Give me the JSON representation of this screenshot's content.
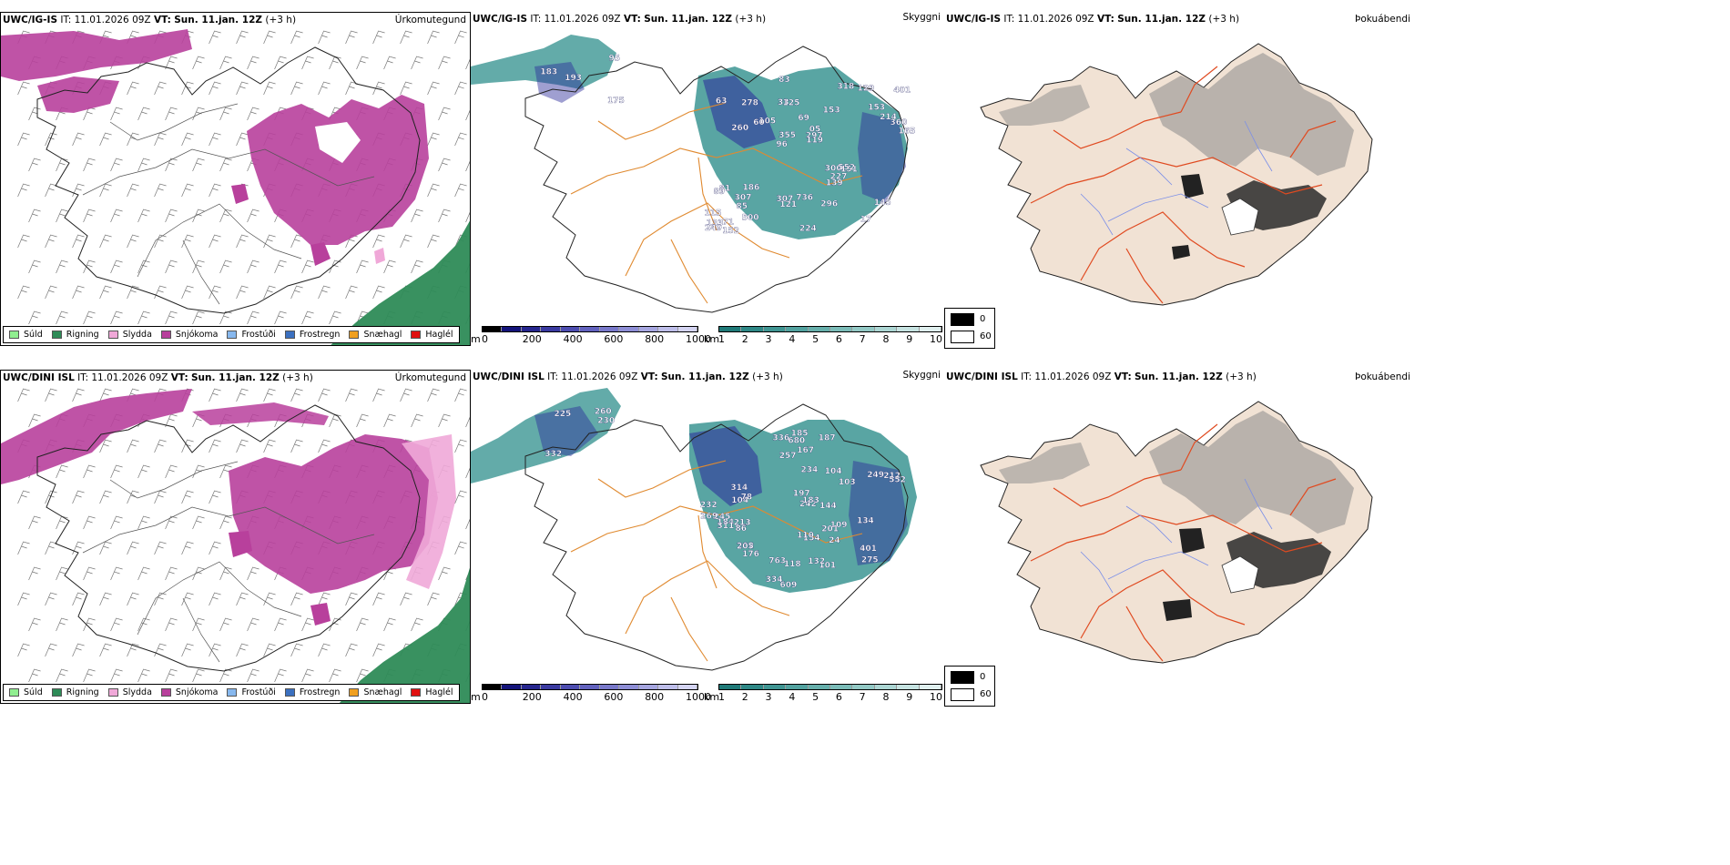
{
  "rows": [
    {
      "model": "UWC/IG-IS",
      "it_label": "IT:",
      "it_value": "11.01.2026 09Z",
      "vt_label": "VT:",
      "vt_value": "Sun. 11.jan. 12Z",
      "lead": "(+3 h)",
      "precip_title": "Úrkomutegund",
      "vis_title": "Skyggni",
      "fog_title": "Þokuábendi",
      "labels": [
        "175",
        "183",
        "95",
        "193",
        "153",
        "71",
        "33",
        "69",
        "81",
        "105",
        "115",
        "85",
        "125",
        "05",
        "151",
        "63",
        "83",
        "165",
        "300",
        "214",
        "96",
        "307",
        "355",
        "278",
        "318",
        "186",
        "17",
        "145",
        "552",
        "224",
        "60",
        "260",
        "139",
        "500",
        "360",
        "297",
        "133",
        "121",
        "119",
        "89",
        "153",
        "401",
        "227",
        "296",
        "307",
        "152",
        "249",
        "736",
        "129"
      ]
    },
    {
      "model": "UWC/DINI ISL",
      "it_label": "IT:",
      "it_value": "11.01.2026 09Z",
      "vt_label": "VT:",
      "vt_value": "Sun. 11.jan. 12Z",
      "lead": "(+3 h)",
      "precip_title": "Úrkomutegund",
      "vis_title": "Skyggni",
      "fog_title": "Þokuábendi",
      "labels": [
        "332",
        "260",
        "225",
        "230",
        "154",
        "78",
        "86",
        "202",
        "249",
        "103",
        "245",
        "185",
        "24",
        "242",
        "609",
        "336",
        "275",
        "232",
        "205",
        "334",
        "101",
        "680",
        "257",
        "183",
        "197",
        "763",
        "184",
        "187",
        "234",
        "109",
        "314",
        "176",
        "132",
        "110",
        "401",
        "311",
        "212",
        "144",
        "104",
        "134",
        "552",
        "167",
        "118",
        "213",
        "269",
        "104",
        "201"
      ]
    }
  ],
  "precip_legend": [
    {
      "label": "Súld",
      "color": "#90ee90"
    },
    {
      "label": "Rigning",
      "color": "#2e8b57"
    },
    {
      "label": "Slydda",
      "color": "#f0a8d8"
    },
    {
      "label": "Snjókoma",
      "color": "#b8409c"
    },
    {
      "label": "Frostúði",
      "color": "#87b8ee"
    },
    {
      "label": "Frostregn",
      "color": "#3b70c0"
    },
    {
      "label": "Snæhagl",
      "color": "#f0a020"
    },
    {
      "label": "Haglél",
      "color": "#e01010"
    }
  ],
  "height_bar": {
    "unit": "m",
    "ticks": [
      "0",
      "200",
      "400",
      "600",
      "800",
      "1000"
    ],
    "colors": [
      "#000000",
      "#14147a",
      "#26268e",
      "#3a3aa0",
      "#4d4db0",
      "#6262be",
      "#7878ca",
      "#8e8ed6",
      "#a6a6e0",
      "#bebeea",
      "#d4d4f2"
    ]
  },
  "km_bar": {
    "unit": "km",
    "ticks": [
      "1",
      "2",
      "3",
      "4",
      "5",
      "6",
      "7",
      "8",
      "9",
      "10"
    ],
    "colors": [
      "#1f7a78",
      "#2e8886",
      "#3f9592",
      "#52a29f",
      "#66afab",
      "#7bbcb8",
      "#93c9c5",
      "#acd6d3",
      "#c6e3e1",
      "#e0f0ef"
    ]
  },
  "fog_legend": {
    "high": "0",
    "low": "60"
  },
  "colors": {
    "snow": "#b8409c",
    "rain": "#2e8b57",
    "sleet": "#f0a8d8",
    "vis": "#2f8f8c",
    "cloudbase": "#2a2a9a",
    "roads": "#e08a30",
    "land": "#f1e2d4",
    "fogroad": "#e04a20",
    "river": "#7a8ee8"
  }
}
